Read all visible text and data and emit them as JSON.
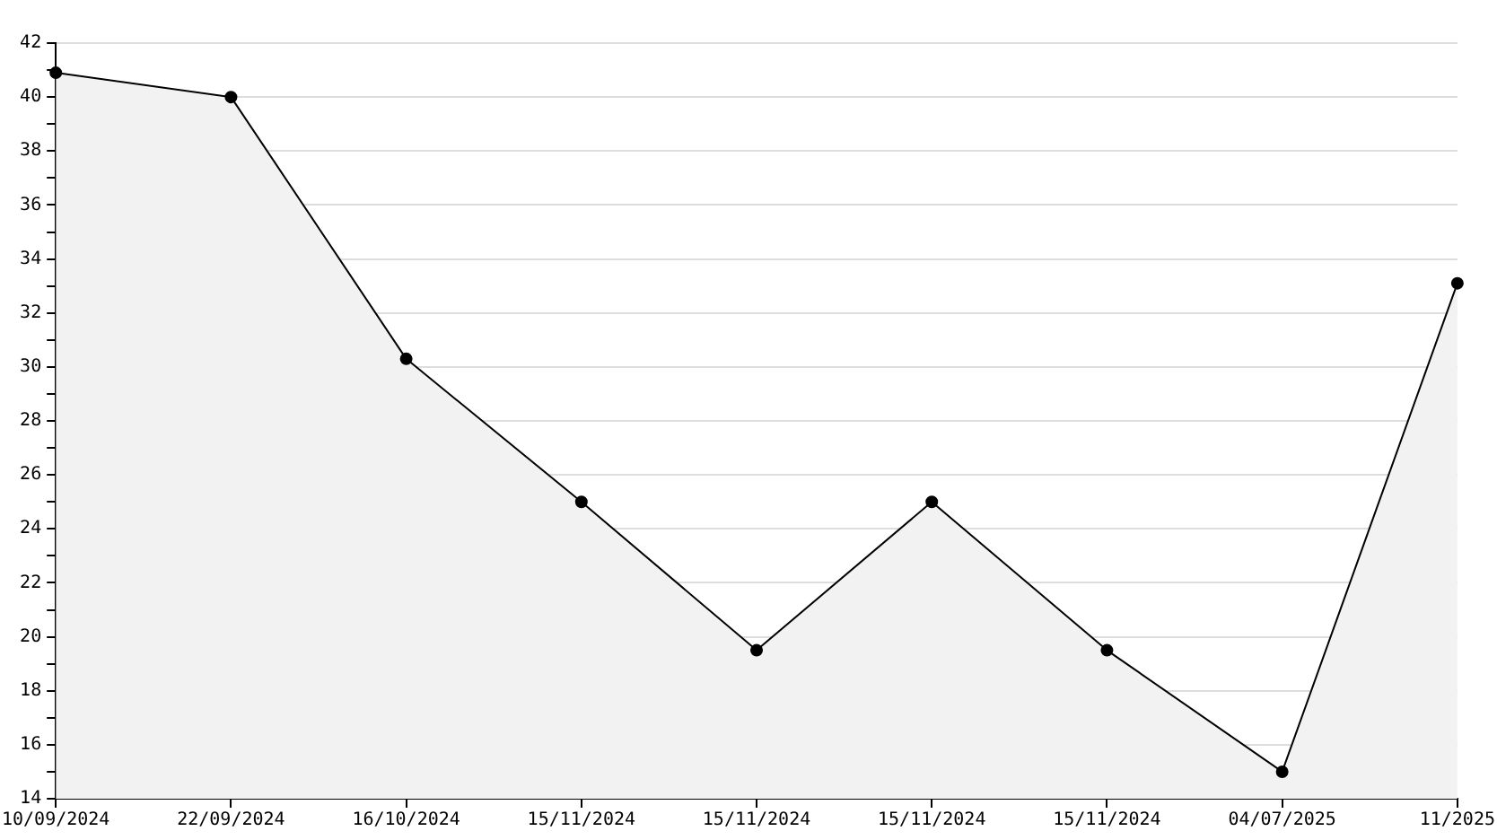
{
  "chart_data": {
    "type": "area",
    "categories": [
      "10/09/2024",
      "22/09/2024",
      "16/10/2024",
      "15/11/2024",
      "15/11/2024",
      "15/11/2024",
      "15/11/2024",
      "04/07/2025",
      "11/2025"
    ],
    "series": [
      {
        "color": "#000000",
        "values": [
          40.9,
          40,
          30.3,
          25,
          19.5,
          25,
          19.5,
          15,
          33.1
        ]
      }
    ],
    "ylim": [
      14,
      42
    ],
    "yticks": [
      14,
      {
        "value": 15,
        "label": null
      },
      16,
      {
        "value": 17,
        "label": null
      },
      18,
      {
        "value": 19,
        "label": null
      },
      20,
      {
        "value": 21,
        "label": null
      },
      22,
      {
        "value": 23,
        "label": null
      },
      24,
      {
        "value": 25,
        "label": null
      },
      26,
      {
        "value": 27,
        "label": null
      },
      28,
      {
        "value": 29,
        "label": null
      },
      30,
      {
        "value": 31,
        "label": null
      },
      32,
      {
        "value": 33,
        "label": null
      },
      34,
      {
        "value": 35,
        "label": null
      },
      36,
      {
        "value": 37,
        "label": null
      },
      38,
      {
        "value": 39,
        "label": null
      },
      40,
      {
        "value": 41,
        "label": null
      },
      42
    ],
    "grid": "y",
    "marker": "circle",
    "line_style": "solid"
  }
}
